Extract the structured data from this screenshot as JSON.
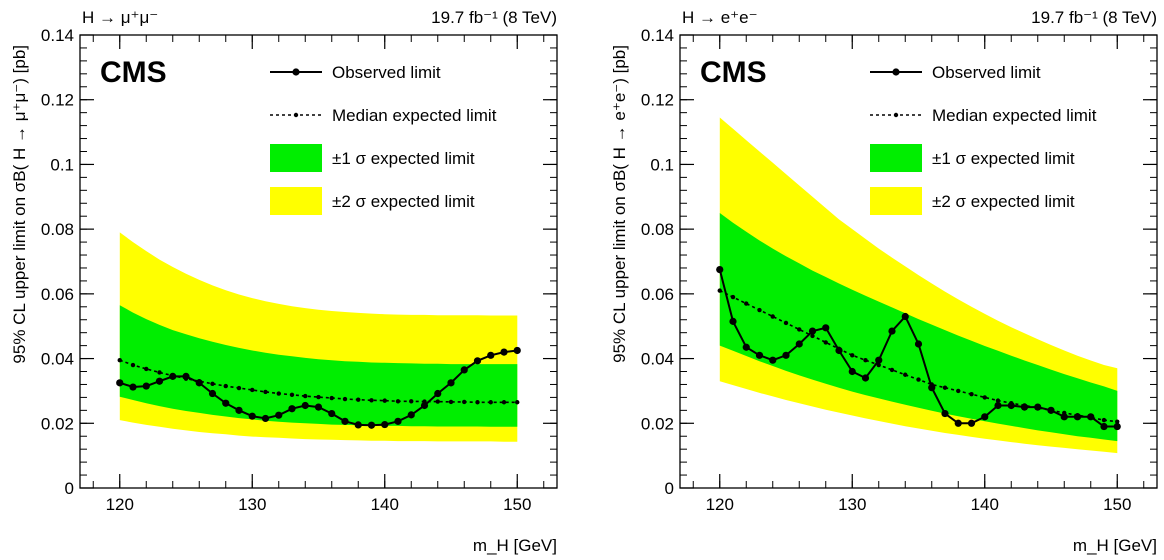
{
  "chart_data": [
    {
      "type": "line",
      "process": "H → μ⁺μ⁻",
      "experiment": "CMS",
      "luminosity": "19.7 fb⁻¹ (8 TeV)",
      "xlabel": "m_H [GeV]",
      "ylabel": "95% CL upper limit on σB( H → μ⁺μ⁻) [pb]",
      "xlim": [
        117,
        153
      ],
      "ylim": [
        0,
        0.14
      ],
      "xticks": [
        "120",
        "130",
        "140",
        "150"
      ],
      "yticks": [
        "0",
        "0.02",
        "0.04",
        "0.06",
        "0.08",
        "0.1",
        "0.12",
        "0.14"
      ],
      "legend": [
        "Observed limit",
        "Median expected limit",
        "±1 σ expected limit",
        "±2 σ expected limit"
      ],
      "x": [
        120,
        121,
        122,
        123,
        124,
        125,
        126,
        127,
        128,
        129,
        130,
        131,
        132,
        133,
        134,
        135,
        136,
        137,
        138,
        139,
        140,
        141,
        142,
        143,
        144,
        145,
        146,
        147,
        148,
        149,
        150
      ],
      "observed": [
        0.0325,
        0.0312,
        0.0315,
        0.033,
        0.0345,
        0.0345,
        0.0325,
        0.0292,
        0.0262,
        0.024,
        0.0222,
        0.0215,
        0.0225,
        0.0245,
        0.0255,
        0.025,
        0.023,
        0.0206,
        0.0195,
        0.0194,
        0.0196,
        0.0206,
        0.0226,
        0.0255,
        0.0292,
        0.0325,
        0.0365,
        0.0393,
        0.041,
        0.042,
        0.0425
      ],
      "expected": [
        0.0395,
        0.038,
        0.0368,
        0.0357,
        0.0347,
        0.0338,
        0.033,
        0.0322,
        0.0315,
        0.0309,
        0.0303,
        0.0297,
        0.0292,
        0.0288,
        0.0284,
        0.0281,
        0.0278,
        0.0275,
        0.0273,
        0.0271,
        0.027,
        0.0268,
        0.0268,
        0.0267,
        0.0267,
        0.0266,
        0.0266,
        0.0265,
        0.0265,
        0.0265,
        0.0265
      ],
      "band1_low": [
        0.0282,
        0.0272,
        0.0262,
        0.0253,
        0.0245,
        0.0238,
        0.0232,
        0.0226,
        0.0221,
        0.0216,
        0.0212,
        0.0208,
        0.0205,
        0.0202,
        0.02,
        0.0198,
        0.0196,
        0.0195,
        0.0194,
        0.0193,
        0.0192,
        0.0192,
        0.0191,
        0.0191,
        0.019,
        0.019,
        0.019,
        0.019,
        0.0189,
        0.0189,
        0.0189
      ],
      "band1_high": [
        0.0565,
        0.0542,
        0.0522,
        0.0504,
        0.0488,
        0.0475,
        0.0463,
        0.0452,
        0.0442,
        0.0433,
        0.0425,
        0.0418,
        0.0412,
        0.0407,
        0.0402,
        0.0398,
        0.0395,
        0.0392,
        0.039,
        0.0388,
        0.0387,
        0.0386,
        0.0385,
        0.0384,
        0.0384,
        0.0383,
        0.0383,
        0.0383,
        0.0383,
        0.0383,
        0.0383
      ],
      "band2_low": [
        0.021,
        0.0202,
        0.0195,
        0.0189,
        0.0183,
        0.0178,
        0.0173,
        0.0169,
        0.0166,
        0.0162,
        0.0159,
        0.0157,
        0.0155,
        0.0153,
        0.0151,
        0.015,
        0.0149,
        0.0148,
        0.0147,
        0.0146,
        0.0146,
        0.0145,
        0.0145,
        0.0145,
        0.0144,
        0.0144,
        0.0144,
        0.0144,
        0.0144,
        0.0143,
        0.0143
      ],
      "band2_high": [
        0.079,
        0.076,
        0.0732,
        0.0706,
        0.0683,
        0.0662,
        0.0643,
        0.0626,
        0.0611,
        0.0598,
        0.0587,
        0.0577,
        0.0569,
        0.0562,
        0.0556,
        0.0551,
        0.0547,
        0.0544,
        0.0541,
        0.0539,
        0.0537,
        0.0536,
        0.0535,
        0.0535,
        0.0534,
        0.0534,
        0.0534,
        0.0534,
        0.0533,
        0.0533,
        0.0533
      ]
    },
    {
      "type": "line",
      "process": "H → e⁺e⁻",
      "experiment": "CMS",
      "luminosity": "19.7 fb⁻¹ (8 TeV)",
      "xlabel": "m_H [GeV]",
      "ylabel": "95% CL upper limit on σB( H → e⁺e⁻) [pb]",
      "xlim": [
        117,
        153
      ],
      "ylim": [
        0,
        0.14
      ],
      "xticks": [
        "120",
        "130",
        "140",
        "150"
      ],
      "yticks": [
        "0",
        "0.02",
        "0.04",
        "0.06",
        "0.08",
        "0.1",
        "0.12",
        "0.14"
      ],
      "legend": [
        "Observed limit",
        "Median expected limit",
        "±1 σ expected limit",
        "±2 σ expected limit"
      ],
      "x": [
        120,
        121,
        122,
        123,
        124,
        125,
        126,
        127,
        128,
        129,
        130,
        131,
        132,
        133,
        134,
        135,
        136,
        137,
        138,
        139,
        140,
        141,
        142,
        143,
        144,
        145,
        146,
        147,
        148,
        149,
        150
      ],
      "observed": [
        0.0675,
        0.0515,
        0.0435,
        0.041,
        0.0395,
        0.041,
        0.0445,
        0.0485,
        0.0495,
        0.0425,
        0.036,
        0.034,
        0.0395,
        0.0485,
        0.053,
        0.0445,
        0.031,
        0.023,
        0.02,
        0.02,
        0.022,
        0.0255,
        0.0255,
        0.025,
        0.025,
        0.024,
        0.022,
        0.022,
        0.022,
        0.019,
        0.019
      ],
      "expected": [
        0.061,
        0.059,
        0.057,
        0.055,
        0.053,
        0.051,
        0.049,
        0.047,
        0.045,
        0.043,
        0.041,
        0.0395,
        0.038,
        0.0365,
        0.035,
        0.0335,
        0.032,
        0.031,
        0.03,
        0.029,
        0.028,
        0.027,
        0.0262,
        0.0255,
        0.0248,
        0.024,
        0.0232,
        0.0225,
        0.0218,
        0.021,
        0.0205
      ],
      "band1_low": [
        0.044,
        0.0424,
        0.0408,
        0.0392,
        0.0377,
        0.0362,
        0.0348,
        0.0335,
        0.0322,
        0.031,
        0.0298,
        0.0287,
        0.0277,
        0.0267,
        0.0257,
        0.0248,
        0.0239,
        0.023,
        0.0222,
        0.0214,
        0.0206,
        0.0199,
        0.0192,
        0.0185,
        0.0178,
        0.0172,
        0.0166,
        0.016,
        0.0155,
        0.015,
        0.0145
      ],
      "band1_high": [
        0.085,
        0.082,
        0.0792,
        0.0765,
        0.074,
        0.0716,
        0.0694,
        0.0672,
        0.0652,
        0.0632,
        0.0613,
        0.0594,
        0.0576,
        0.0558,
        0.054,
        0.0522,
        0.0505,
        0.0488,
        0.0471,
        0.0455,
        0.0439,
        0.0424,
        0.0409,
        0.0394,
        0.038,
        0.0366,
        0.0352,
        0.0339,
        0.0326,
        0.0314,
        0.03
      ],
      "band2_low": [
        0.033,
        0.0318,
        0.0306,
        0.0294,
        0.0283,
        0.0272,
        0.0262,
        0.0252,
        0.0242,
        0.0233,
        0.0224,
        0.0215,
        0.0207,
        0.0199,
        0.0191,
        0.0184,
        0.0177,
        0.017,
        0.0164,
        0.0158,
        0.0152,
        0.0147,
        0.0142,
        0.0137,
        0.0132,
        0.0128,
        0.0124,
        0.012,
        0.0116,
        0.0112,
        0.0108
      ],
      "band2_high": [
        0.1145,
        0.111,
        0.1075,
        0.104,
        0.1005,
        0.097,
        0.0935,
        0.09,
        0.0865,
        0.083,
        0.08,
        0.077,
        0.074,
        0.0712,
        0.0685,
        0.0658,
        0.0632,
        0.0607,
        0.0583,
        0.056,
        0.0538,
        0.0517,
        0.0497,
        0.0478,
        0.046,
        0.0442,
        0.0425,
        0.0409,
        0.0394,
        0.038,
        0.037
      ]
    }
  ],
  "colors": {
    "band1": "#00ee00",
    "band2": "#ffff00",
    "line": "#000000"
  }
}
